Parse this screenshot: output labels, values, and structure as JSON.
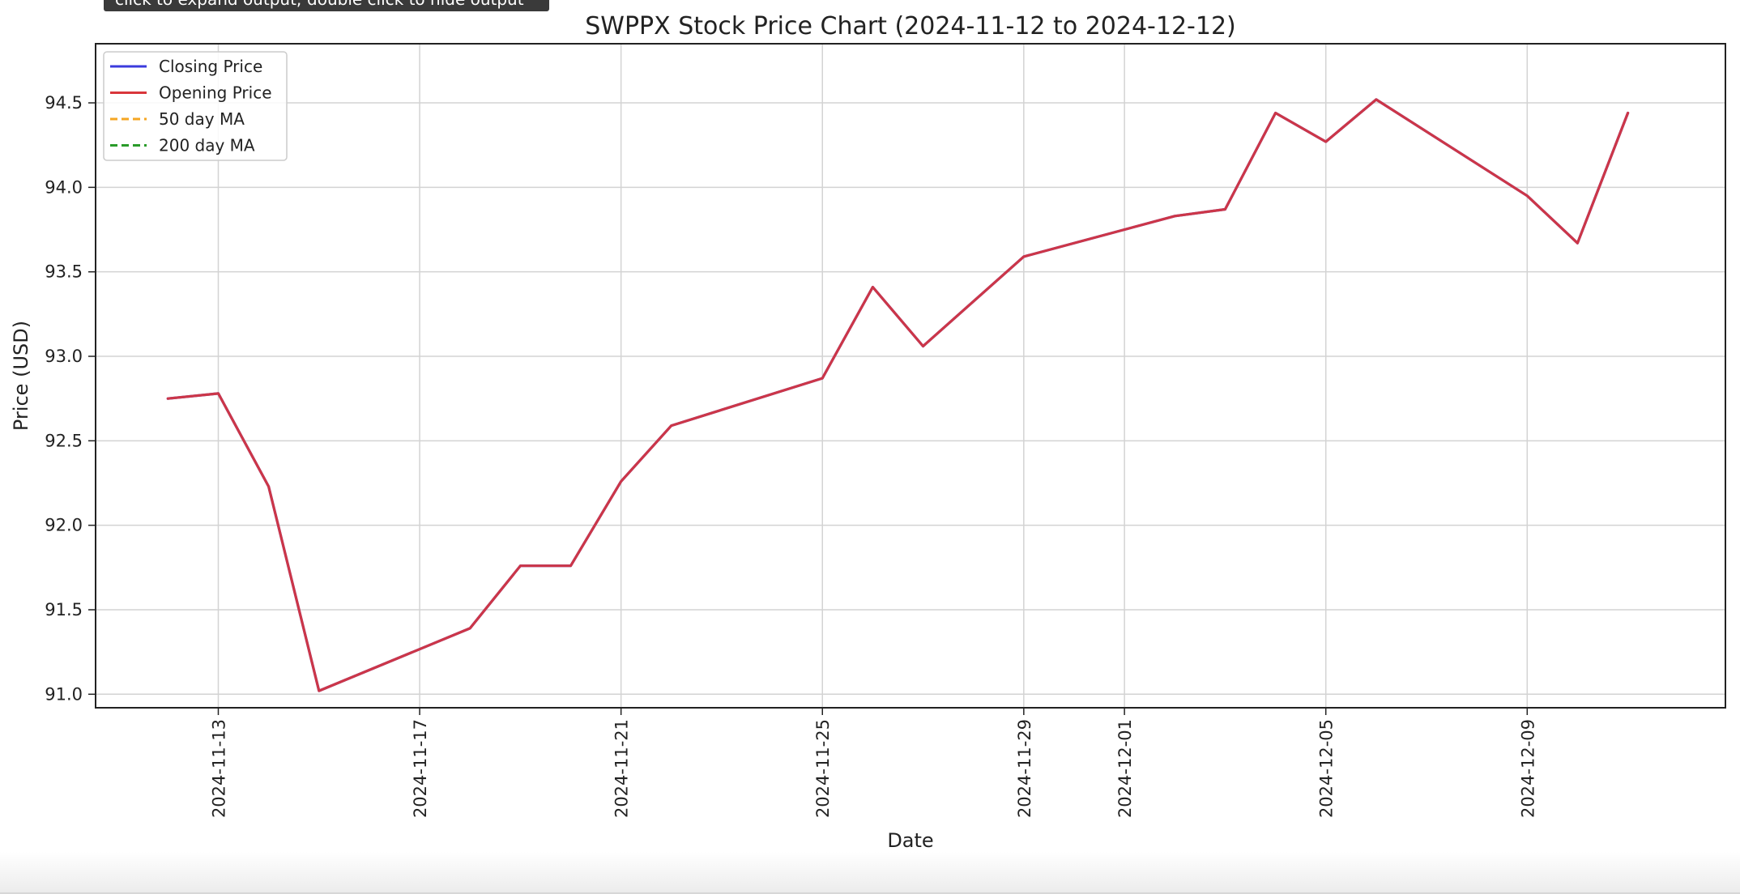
{
  "tooltip": {
    "text": "click to expand output; double click to hide output"
  },
  "chart_data": {
    "type": "line",
    "title": "SWPPX Stock Price Chart (2024-11-12 to 2024-12-12)",
    "xlabel": "Date",
    "ylabel": "Price (USD)",
    "x_tick_labels": [
      "2024-11-13",
      "2024-11-17",
      "2024-11-21",
      "2024-11-25",
      "2024-11-29",
      "2024-12-01",
      "2024-12-05",
      "2024-12-09"
    ],
    "y_tick_labels": [
      "91.0",
      "91.5",
      "92.0",
      "92.5",
      "93.0",
      "93.5",
      "94.0",
      "94.5"
    ],
    "ylim": [
      90.92,
      94.85
    ],
    "xlim": [
      "2024-11-10T13:30",
      "2024-12-12T22:30"
    ],
    "grid": true,
    "legend_position": "top-left",
    "series": [
      {
        "name": "Closing Price",
        "color": "#3b3bdd",
        "style": "solid",
        "dates": [
          "2024-11-12",
          "2024-11-13",
          "2024-11-14",
          "2024-11-15",
          "2024-11-18",
          "2024-11-19",
          "2024-11-20",
          "2024-11-21",
          "2024-11-22",
          "2024-11-25",
          "2024-11-26",
          "2024-11-27",
          "2024-11-29",
          "2024-12-02",
          "2024-12-03",
          "2024-12-04",
          "2024-12-05",
          "2024-12-06",
          "2024-12-09",
          "2024-12-10",
          "2024-12-11"
        ],
        "values": [
          92.75,
          92.78,
          92.23,
          91.02,
          91.39,
          91.76,
          91.76,
          92.26,
          92.59,
          92.87,
          93.41,
          93.06,
          93.59,
          93.83,
          93.87,
          94.44,
          94.27,
          94.52,
          93.95,
          93.67,
          94.44
        ]
      },
      {
        "name": "Opening Price",
        "color": "#d9363b",
        "style": "solid",
        "dates": [
          "2024-11-12",
          "2024-11-13",
          "2024-11-14",
          "2024-11-15",
          "2024-11-18",
          "2024-11-19",
          "2024-11-20",
          "2024-11-21",
          "2024-11-22",
          "2024-11-25",
          "2024-11-26",
          "2024-11-27",
          "2024-11-29",
          "2024-12-02",
          "2024-12-03",
          "2024-12-04",
          "2024-12-05",
          "2024-12-06",
          "2024-12-09",
          "2024-12-10",
          "2024-12-11"
        ],
        "values": [
          92.75,
          92.78,
          92.23,
          91.02,
          91.39,
          91.76,
          91.76,
          92.26,
          92.59,
          92.87,
          93.41,
          93.06,
          93.59,
          93.83,
          93.87,
          94.44,
          94.27,
          94.52,
          93.95,
          93.67,
          94.44
        ]
      },
      {
        "name": "50 day MA",
        "color": "#f5a623",
        "style": "dashed",
        "dates": [],
        "values": []
      },
      {
        "name": "200 day MA",
        "color": "#2a9b2a",
        "style": "dashed",
        "dates": [],
        "values": []
      }
    ]
  }
}
